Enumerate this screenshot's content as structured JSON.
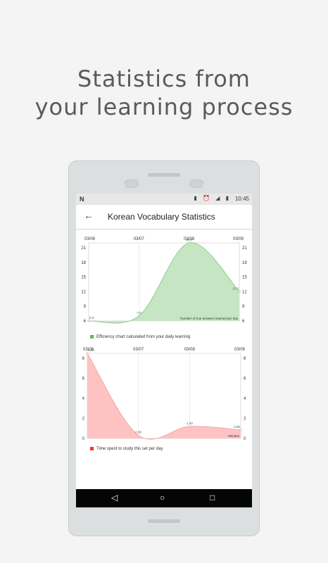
{
  "headline": {
    "line1": "Statistics from",
    "line2": "your learning process"
  },
  "status_bar": {
    "carrier_glyph": "N",
    "icons": "▮ ⏰ ◢ ▮",
    "time": "10:45"
  },
  "app_bar": {
    "back_icon": "←",
    "title": "Korean Vocabulary Statistics"
  },
  "colors": {
    "efficiency_fill": "#c6e6c3",
    "efficiency_line": "#7cc47a",
    "time_fill": "#ffc2c2",
    "time_line": "#ef9a9a"
  },
  "nav_bar": {
    "back_glyph": "◁",
    "home_glyph": "○",
    "recent_glyph": "□"
  },
  "chart_data": [
    {
      "type": "area",
      "x": [
        "03/06",
        "03/07",
        "03/08",
        "03/09"
      ],
      "yticks_left": [
        "21",
        "18",
        "15",
        "12",
        "9",
        "6"
      ],
      "yticks_right": [
        "21",
        "18",
        "15",
        "12",
        "9",
        "6"
      ],
      "ylim": [
        6,
        22
      ],
      "values": [
        6.0,
        7.0,
        22.0,
        12.0
      ],
      "value_labels": [
        "6.0",
        "7.0",
        "22.0",
        "12.0"
      ],
      "inner_label": "Number of true answers reached per day",
      "legend": "Efficiency chart calculated from your daily learning",
      "grid": true
    },
    {
      "type": "area",
      "x": [
        "03/06",
        "03/07",
        "03/08",
        "03/09"
      ],
      "yticks_left": [
        "8",
        "6",
        "4",
        "2",
        "0"
      ],
      "yticks_right": [
        "8",
        "6",
        "4",
        "2",
        "0"
      ],
      "ylim": [
        0,
        8.5
      ],
      "values": [
        8.5,
        0.3,
        1.2,
        0.85
      ],
      "value_labels": [
        "8.50",
        "0.30",
        "1.20",
        "0.85"
      ],
      "inner_label": "Minutes",
      "legend": "Time spent to study this set per day",
      "grid": true
    }
  ]
}
